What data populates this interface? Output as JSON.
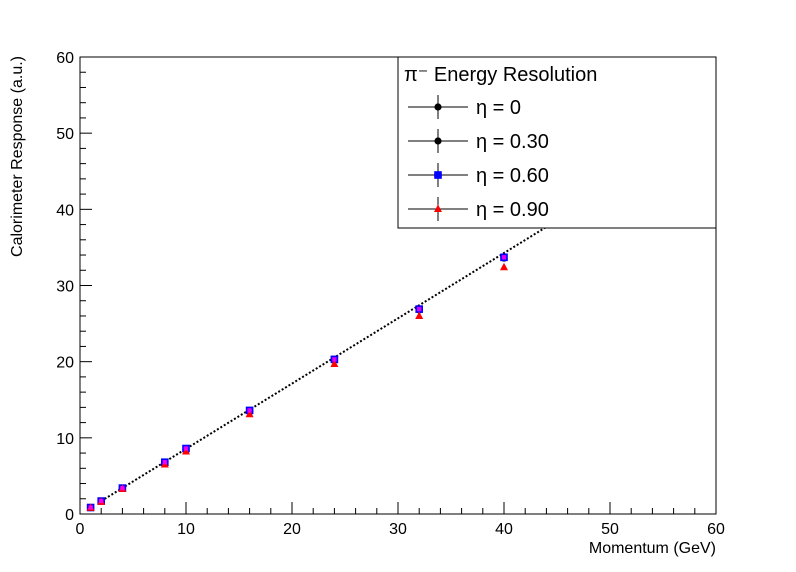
{
  "chart_data": {
    "type": "scatter",
    "xlabel": "Momentum (GeV)",
    "ylabel": "Calorimeter Response (a.u.)",
    "xlim": [
      0,
      60
    ],
    "ylim": [
      0,
      60
    ],
    "x_ticks": [
      0,
      10,
      20,
      30,
      40,
      50,
      60
    ],
    "y_ticks": [
      0,
      10,
      20,
      30,
      40,
      50,
      60
    ],
    "x_tick_labels": [
      "0",
      "10",
      "20",
      "30",
      "40",
      "50",
      "60"
    ],
    "y_tick_labels": [
      "0",
      "10",
      "20",
      "30",
      "40",
      "50",
      "60"
    ],
    "grid": false,
    "legend": {
      "title": "π⁻ Energy Resolution",
      "position": "top-right"
    },
    "series": [
      {
        "name": "η = 0",
        "marker": "circle",
        "color": "#000000",
        "x": [
          1,
          2,
          4,
          8,
          10,
          16,
          24,
          32,
          40
        ],
        "y": [
          0.85,
          1.7,
          3.4,
          6.8,
          8.5,
          13.5,
          20.2,
          26.8,
          33.6
        ]
      },
      {
        "name": "η = 0.30",
        "marker": "circle",
        "color": "#000000",
        "x": [
          1,
          2,
          4,
          8,
          10,
          16,
          24,
          32,
          40
        ],
        "y": [
          0.85,
          1.7,
          3.4,
          6.8,
          8.5,
          13.5,
          20.2,
          26.8,
          33.6
        ]
      },
      {
        "name": "η = 0.60",
        "marker": "square",
        "color": "#0000ff",
        "x": [
          1,
          2,
          4,
          8,
          10,
          16,
          24,
          32,
          40
        ],
        "y": [
          0.85,
          1.7,
          3.4,
          6.8,
          8.6,
          13.6,
          20.3,
          26.9,
          33.7
        ]
      },
      {
        "name": "η = 0.90",
        "marker": "triangle",
        "color": "#ff0000",
        "x": [
          1,
          2,
          4,
          8,
          10,
          16,
          24,
          32,
          40
        ],
        "y": [
          0.8,
          1.6,
          3.3,
          6.5,
          8.2,
          13.1,
          19.7,
          26.0,
          32.4
        ]
      }
    ],
    "fit_line": {
      "style": "dotted",
      "color": "#000000",
      "x": [
        2,
        60
      ],
      "y": [
        1.7,
        51.4
      ]
    },
    "pion_color": "#ff00ff"
  }
}
